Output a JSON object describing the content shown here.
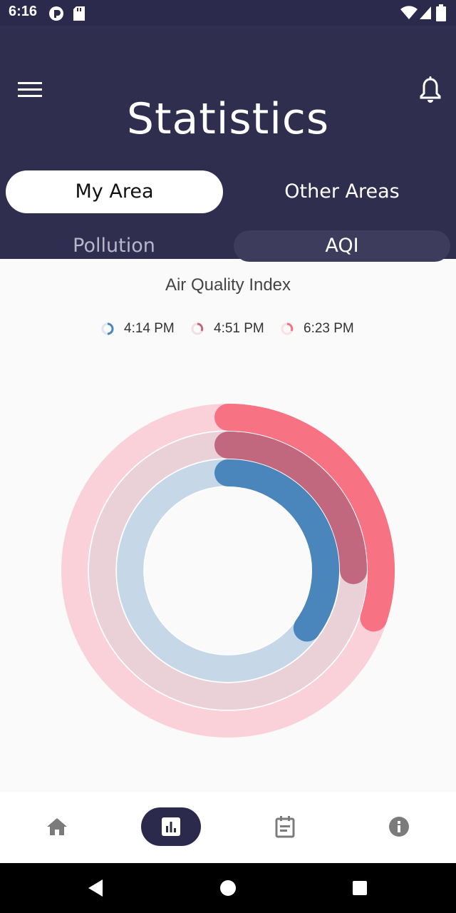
{
  "status_bar": {
    "time": "6:16"
  },
  "header": {
    "title": "Statistics",
    "tabs": [
      {
        "label": "My Area",
        "selected": true
      },
      {
        "label": "Other Areas",
        "selected": false
      }
    ],
    "sub_tabs": [
      {
        "label": "Pollution",
        "selected": false
      },
      {
        "label": "AQI",
        "selected": true
      }
    ]
  },
  "chart": {
    "title": "Air Quality Index",
    "legend": [
      {
        "label": "4:14 PM",
        "color": "#4a86bb"
      },
      {
        "label": "4:51 PM",
        "color": "#c2687e"
      },
      {
        "label": "6:23 PM",
        "color": "#f77283"
      }
    ]
  },
  "chart_data": {
    "type": "radial-bar",
    "title": "Air Quality Index",
    "series": [
      {
        "name": "6:23 PM",
        "value": 0.3,
        "color": "#f77283",
        "track": "#fad1d8"
      },
      {
        "name": "4:51 PM",
        "value": 0.25,
        "color": "#c2687e",
        "track": "#ead0d7"
      },
      {
        "name": "4:14 PM",
        "value": 0.35,
        "color": "#4a86bb",
        "track": "#c6d8e8"
      }
    ]
  },
  "bottom_nav": {
    "items": [
      {
        "icon": "home-icon",
        "active": false
      },
      {
        "icon": "bar-chart-icon",
        "active": true
      },
      {
        "icon": "calendar-icon",
        "active": false
      },
      {
        "icon": "info-icon",
        "active": false
      }
    ],
    "active_color": "#2b2a4c"
  }
}
